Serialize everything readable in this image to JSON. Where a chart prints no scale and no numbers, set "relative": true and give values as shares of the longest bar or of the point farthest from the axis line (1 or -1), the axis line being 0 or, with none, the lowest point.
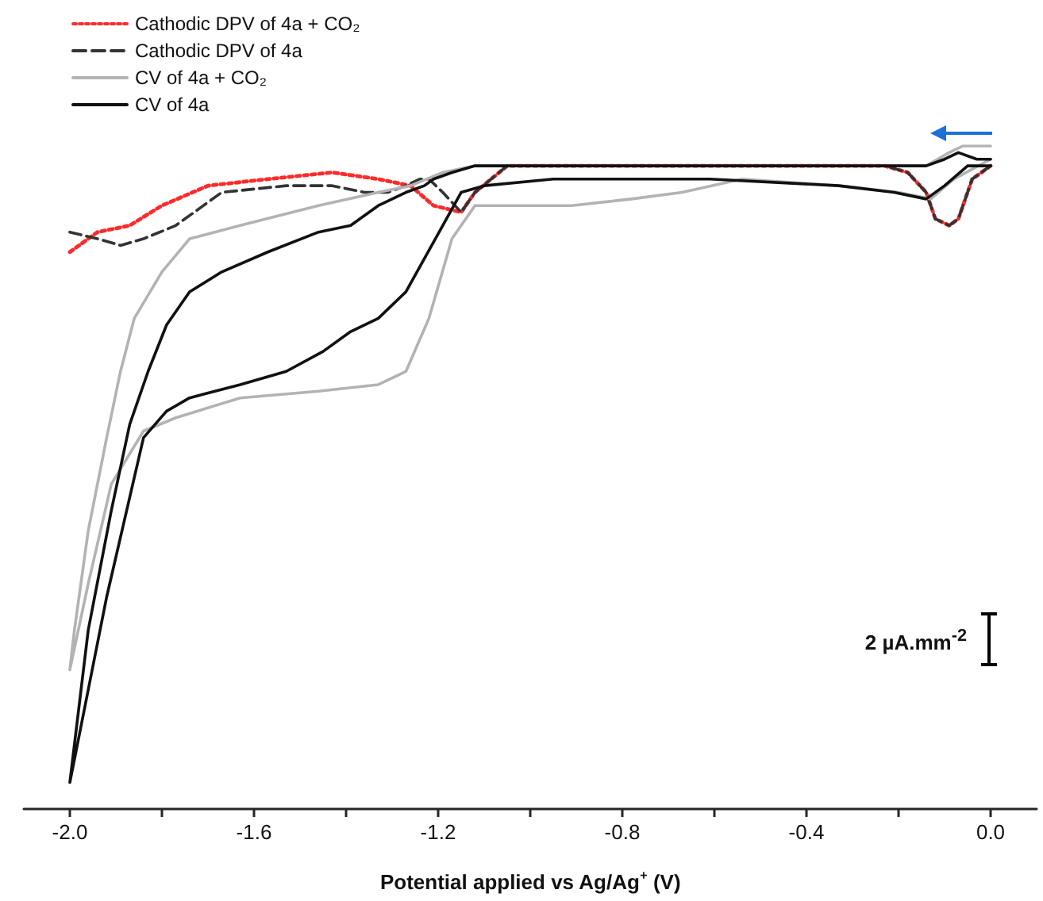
{
  "chart_data": {
    "type": "line",
    "relative": true,
    "xlabel": "Potential applied vs Ag/Ag$^{+}$ (V)",
    "xlim": [
      -2.1,
      0.1
    ],
    "xticks": [
      {
        "value": -2.0,
        "label": "-2.0"
      },
      {
        "value": -1.8,
        "label": null
      },
      {
        "value": -1.6,
        "label": "-1.6"
      },
      {
        "value": -1.4,
        "label": null
      },
      {
        "value": -1.2,
        "label": "-1.2"
      },
      {
        "value": -1.0,
        "label": null
      },
      {
        "value": -0.8,
        "label": "-0.8"
      },
      {
        "value": -0.6,
        "label": null
      },
      {
        "value": -0.4,
        "label": "-0.4"
      },
      {
        "value": -0.2,
        "label": null
      },
      {
        "value": 0.0,
        "label": "0.0"
      }
    ],
    "grid": false,
    "legend": "top left",
    "marker": "none",
    "annotations": [
      "2 µA.mm$^{-2}$"
    ],
    "series": [
      {
        "name": "Cathodic DPV of 4a + CO₂",
        "color": "#ff2a2a",
        "line_style": "dotted",
        "x": [
          -2.0,
          -1.94,
          -1.87,
          -1.8,
          -1.7,
          -1.57,
          -1.43,
          -1.33,
          -1.26,
          -1.21,
          -1.15,
          -1.12,
          -1.05,
          -0.95,
          -0.61,
          -0.23,
          -0.18,
          -0.14,
          -0.12,
          -0.09,
          -0.07,
          -0.04,
          0.0
        ],
        "values": [
          0.84,
          0.87,
          0.88,
          0.91,
          0.94,
          0.95,
          0.96,
          0.95,
          0.94,
          0.91,
          0.9,
          0.93,
          0.97,
          0.97,
          0.97,
          0.97,
          0.96,
          0.93,
          0.89,
          0.88,
          0.89,
          0.95,
          0.97
        ]
      },
      {
        "name": "Cathodic DPV of 4a",
        "color": "#333333",
        "line_style": "dashed",
        "x": [
          -2.0,
          -1.94,
          -1.89,
          -1.84,
          -1.77,
          -1.67,
          -1.53,
          -1.43,
          -1.36,
          -1.31,
          -1.27,
          -1.24,
          -1.22,
          -1.19,
          -1.15,
          -1.12,
          -1.05,
          -0.95,
          -0.61,
          -0.23,
          -0.18,
          -0.14,
          -0.12,
          -0.09,
          -0.07,
          -0.04,
          0.0
        ],
        "values": [
          0.87,
          0.86,
          0.85,
          0.86,
          0.88,
          0.93,
          0.94,
          0.94,
          0.93,
          0.93,
          0.94,
          0.95,
          0.95,
          0.93,
          0.9,
          0.93,
          0.97,
          0.97,
          0.97,
          0.97,
          0.96,
          0.93,
          0.89,
          0.88,
          0.89,
          0.95,
          0.97
        ]
      },
      {
        "name": "CV of 4a + CO₂",
        "color": "#b3b3b3",
        "line_style": "solid",
        "x": [
          0.0,
          -0.06,
          -0.09,
          -0.14,
          -0.23,
          -0.78,
          -1.12,
          -1.19,
          -1.26,
          -1.33,
          -1.46,
          -1.63,
          -1.74,
          -1.8,
          -1.86,
          -1.89,
          -1.92,
          -1.96,
          -1.99,
          -2.0,
          -1.96,
          -1.91,
          -1.84,
          -1.77,
          -1.63,
          -1.46,
          -1.33,
          -1.27,
          -1.22,
          -1.17,
          -1.12,
          -1.05,
          -0.91,
          -0.78,
          -0.67,
          -0.54,
          -0.33,
          -0.2,
          -0.13,
          -0.08,
          0.0
        ],
        "values": [
          1.0,
          1.0,
          0.99,
          0.97,
          0.97,
          0.97,
          0.97,
          0.96,
          0.94,
          0.93,
          0.91,
          0.88,
          0.86,
          0.81,
          0.74,
          0.66,
          0.56,
          0.42,
          0.27,
          0.21,
          0.34,
          0.49,
          0.57,
          0.59,
          0.62,
          0.63,
          0.64,
          0.66,
          0.74,
          0.86,
          0.91,
          0.91,
          0.91,
          0.92,
          0.93,
          0.95,
          0.94,
          0.93,
          0.92,
          0.95,
          0.98
        ]
      },
      {
        "name": "CV of 4a",
        "color": "#111111",
        "line_style": "solid",
        "x": [
          0.0,
          -0.03,
          -0.07,
          -0.1,
          -0.14,
          -0.23,
          -0.61,
          -0.95,
          -1.12,
          -1.17,
          -1.21,
          -1.23,
          -1.27,
          -1.33,
          -1.39,
          -1.46,
          -1.57,
          -1.67,
          -1.74,
          -1.79,
          -1.83,
          -1.87,
          -1.91,
          -1.96,
          -2.0,
          -1.96,
          -1.92,
          -1.87,
          -1.84,
          -1.79,
          -1.74,
          -1.63,
          -1.53,
          -1.45,
          -1.39,
          -1.33,
          -1.27,
          -1.23,
          -1.19,
          -1.15,
          -1.1,
          -0.95,
          -0.61,
          -0.33,
          -0.21,
          -0.14,
          -0.1,
          -0.05,
          0.0
        ],
        "values": [
          0.98,
          0.98,
          0.99,
          0.98,
          0.97,
          0.97,
          0.97,
          0.97,
          0.97,
          0.96,
          0.95,
          0.94,
          0.93,
          0.91,
          0.88,
          0.87,
          0.84,
          0.81,
          0.78,
          0.73,
          0.66,
          0.58,
          0.45,
          0.27,
          0.04,
          0.18,
          0.32,
          0.47,
          0.56,
          0.6,
          0.62,
          0.64,
          0.66,
          0.69,
          0.72,
          0.74,
          0.78,
          0.83,
          0.88,
          0.93,
          0.94,
          0.95,
          0.95,
          0.94,
          0.93,
          0.92,
          0.94,
          0.97,
          0.97
        ]
      }
    ]
  }
}
